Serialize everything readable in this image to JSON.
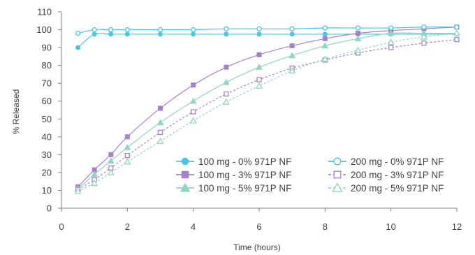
{
  "chart_data": {
    "type": "line",
    "title": "",
    "xlabel": "Time (hours)",
    "ylabel": "% Released",
    "xlim": [
      0,
      12
    ],
    "ylim": [
      0,
      110
    ],
    "xticks": [
      "0",
      "2",
      "4",
      "6",
      "8",
      "10",
      "12"
    ],
    "yticks": [
      "0",
      "10",
      "20",
      "30",
      "40",
      "50",
      "60",
      "70",
      "80",
      "90",
      "100",
      "110"
    ],
    "grid": false,
    "legend_position": "lower-right",
    "series": [
      {
        "name": "100 mg  - 0% 971P NF",
        "color": "#4fc3df",
        "marker": "circle",
        "filled": true,
        "dash": "solid",
        "x": [
          0.5,
          1,
          1.5,
          2,
          3,
          4,
          5,
          6,
          7,
          8,
          9,
          10,
          11,
          12
        ],
        "y": [
          90,
          97.5,
          97.5,
          97.5,
          97.5,
          97.5,
          97.5,
          97.5,
          97.5,
          97.5,
          97.5,
          97.5,
          97.5,
          97.5
        ]
      },
      {
        "name": "100 mg  - 3% 971P NF",
        "color": "#a582c8",
        "marker": "square",
        "filled": true,
        "dash": "solid",
        "x": [
          0.5,
          1,
          1.5,
          2,
          3,
          4,
          5,
          6,
          7,
          8,
          9,
          10,
          11,
          12
        ],
        "y": [
          12,
          21.5,
          30,
          40,
          56,
          69,
          79,
          86,
          91,
          95,
          98,
          99.5,
          100.5,
          101.5
        ]
      },
      {
        "name": "100 mg  - 5% 971P NF",
        "color": "#8fd6c0",
        "marker": "triangle",
        "filled": true,
        "dash": "solid",
        "x": [
          0.5,
          1,
          1.5,
          2,
          3,
          4,
          5,
          6,
          7,
          8,
          9,
          10,
          11,
          12
        ],
        "y": [
          11,
          19,
          26.5,
          34,
          48,
          60,
          70.5,
          79,
          85.5,
          91,
          95,
          98,
          98,
          98
        ]
      },
      {
        "name": "200 mg  - 0% 971P NF",
        "color": "#4fc3df",
        "marker": "circle",
        "filled": false,
        "dash": "solid",
        "x": [
          0.5,
          1,
          1.5,
          2,
          3,
          4,
          5,
          6,
          7,
          8,
          9,
          10,
          11,
          12
        ],
        "y": [
          98,
          100,
          100,
          100,
          100,
          100,
          100.5,
          100.5,
          100.5,
          101,
          101,
          101,
          101.5,
          101.5
        ]
      },
      {
        "name": "200 mg  - 3% 971P NF",
        "color": "#a582c8",
        "marker": "square",
        "filled": false,
        "dash": "dashed",
        "x": [
          0.5,
          1,
          1.5,
          2,
          3,
          4,
          5,
          6,
          7,
          8,
          9,
          10,
          11,
          12
        ],
        "y": [
          10.5,
          16,
          22.5,
          29.5,
          42.5,
          54,
          64,
          72,
          78.5,
          83,
          87,
          90,
          92.5,
          94.5
        ]
      },
      {
        "name": "200 mg  - 5% 971P NF",
        "color": "#8fd6c0",
        "marker": "triangle",
        "filled": false,
        "dash": "dashed",
        "x": [
          0.5,
          1,
          1.5,
          2,
          3,
          4,
          5,
          6,
          7,
          8,
          9,
          10,
          11,
          12
        ],
        "y": [
          9.5,
          14,
          20,
          26,
          37.5,
          49,
          59.5,
          68.5,
          77,
          83.5,
          88.5,
          93,
          96,
          98
        ]
      }
    ]
  }
}
